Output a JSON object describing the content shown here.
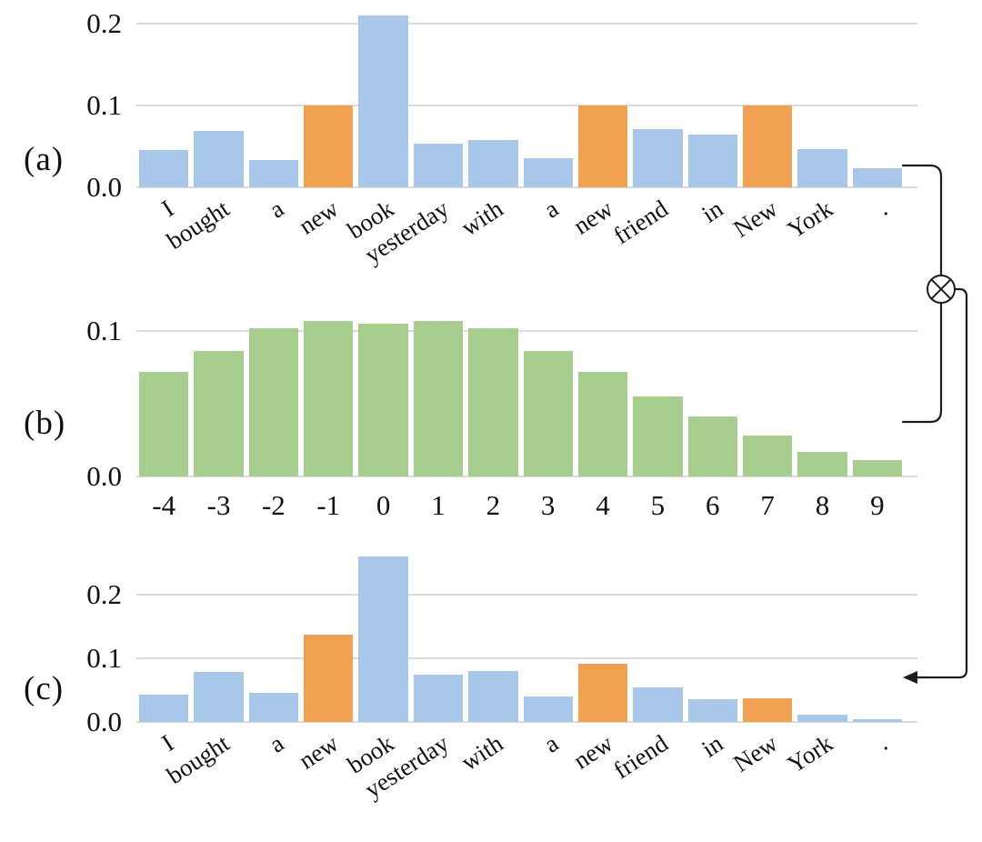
{
  "figure": {
    "operator_symbol": "⊗",
    "panels": [
      "(a)",
      "(b)",
      "(c)"
    ]
  },
  "chart_data": [
    {
      "type": "bar",
      "panel_label": "(a)",
      "categories": [
        "I",
        "bought",
        "a",
        "new",
        "book",
        "yesterday",
        "with",
        "a",
        "new",
        "friend",
        "in",
        "New",
        "York",
        "."
      ],
      "values": [
        0.045,
        0.069,
        0.033,
        0.1,
        0.21,
        0.053,
        0.058,
        0.035,
        0.1,
        0.071,
        0.064,
        0.1,
        0.047,
        0.023
      ],
      "highlighted_indices": [
        3,
        8,
        11
      ],
      "bar_color": "#A9C7E8",
      "highlight_color": "#F0A252",
      "yticks": [
        {
          "label": "0.0",
          "value": 0
        },
        {
          "label": "0.1",
          "value": 0.1
        },
        {
          "label": "0.2",
          "value": 0.2
        }
      ],
      "ylim": [
        0,
        0.22
      ],
      "xlabel_style": "rotated",
      "grid": true,
      "legend": "none"
    },
    {
      "type": "bar",
      "panel_label": "(b)",
      "categories": [
        "-4",
        "-3",
        "-2",
        "-1",
        "0",
        "1",
        "2",
        "3",
        "4",
        "5",
        "6",
        "7",
        "8",
        "9"
      ],
      "values": [
        0.072,
        0.086,
        0.102,
        0.107,
        0.105,
        0.107,
        0.102,
        0.086,
        0.072,
        0.055,
        0.041,
        0.028,
        0.017,
        0.011
      ],
      "highlighted_indices": [],
      "bar_color": "#A7CE8E",
      "highlight_color": "#A7CE8E",
      "yticks": [
        {
          "label": "0.0",
          "value": 0
        },
        {
          "label": "0.1",
          "value": 0.1
        }
      ],
      "ylim": [
        0,
        0.11
      ],
      "xlabel_style": "horizontal",
      "grid": true,
      "legend": "none"
    },
    {
      "type": "bar",
      "panel_label": "(c)",
      "categories": [
        "I",
        "bought",
        "a",
        "new",
        "book",
        "yesterday",
        "with",
        "a",
        "new",
        "friend",
        "in",
        "New",
        "York",
        "."
      ],
      "values": [
        0.043,
        0.079,
        0.046,
        0.137,
        0.26,
        0.074,
        0.08,
        0.04,
        0.091,
        0.054,
        0.036,
        0.037,
        0.011,
        0.004
      ],
      "highlighted_indices": [
        3,
        8,
        11
      ],
      "bar_color": "#A9C7E8",
      "highlight_color": "#F0A252",
      "yticks": [
        {
          "label": "0.0",
          "value": 0
        },
        {
          "label": "0.1",
          "value": 0.1
        },
        {
          "label": "0.2",
          "value": 0.2
        }
      ],
      "ylim": [
        0,
        0.27
      ],
      "xlabel_style": "rotated",
      "grid": true,
      "legend": "none"
    }
  ]
}
